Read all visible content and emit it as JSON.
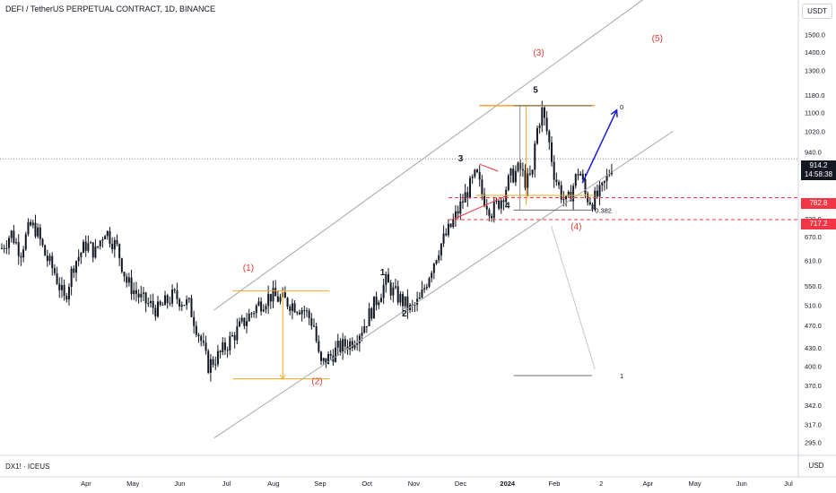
{
  "header": {
    "symbol_title": "DEFI / TetherUS PERPETUAL CONTRACT, 1D, BINANCE",
    "currency_button": "USDT"
  },
  "footer": {
    "sub_symbol": "DX1! · ICEUS",
    "currency_button": "USD"
  },
  "price_badges": {
    "last_price": "914.2",
    "countdown": "14:58:38",
    "level_upper": "782.8",
    "level_lower": "717.2"
  },
  "colors": {
    "candle": "#131722",
    "channel": "#a6a6a6",
    "orange": "#f5a623",
    "red_label": "#e53935",
    "dashed_red": "#f23645",
    "projection": "#1c1cd6",
    "fib": "#6b6b6b"
  },
  "chart_data": {
    "type": "candlestick",
    "x_axis_labels": [
      "Apr",
      "May",
      "Jun",
      "Jul",
      "Aug",
      "Sep",
      "Oct",
      "Nov",
      "Dec",
      "2024",
      "Feb",
      "2",
      "Apr",
      "May",
      "Jun",
      "Jul"
    ],
    "y_axis_labels": [
      "1500.0",
      "1400.0",
      "1300.0",
      "1180.0",
      "1100.0",
      "1020.0",
      "940.0",
      "865.0",
      "720.0",
      "670.0",
      "610.0",
      "550.0",
      "510.0",
      "470.0",
      "430.0",
      "400.0",
      "370.0",
      "342.0",
      "317.0",
      "295.0"
    ],
    "scale": "log",
    "y_range": [
      280,
      1650
    ],
    "price_path": [
      [
        0,
        640
      ],
      [
        3,
        680
      ],
      [
        6,
        630
      ],
      [
        9,
        700
      ],
      [
        11,
        690
      ],
      [
        14,
        620
      ],
      [
        17,
        580
      ],
      [
        20,
        520
      ],
      [
        23,
        600
      ],
      [
        27,
        650
      ],
      [
        30,
        630
      ],
      [
        33,
        690
      ],
      [
        37,
        640
      ],
      [
        40,
        560
      ],
      [
        45,
        520
      ],
      [
        50,
        500
      ],
      [
        55,
        530
      ],
      [
        60,
        510
      ],
      [
        64,
        440
      ],
      [
        66,
        400
      ],
      [
        68,
        410
      ],
      [
        70,
        420
      ],
      [
        74,
        450
      ],
      [
        78,
        480
      ],
      [
        82,
        510
      ],
      [
        86,
        530
      ],
      [
        90,
        520
      ],
      [
        94,
        510
      ],
      [
        97,
        500
      ],
      [
        100,
        470
      ],
      [
        102,
        400
      ],
      [
        104,
        410
      ],
      [
        108,
        430
      ],
      [
        112,
        440
      ],
      [
        116,
        470
      ],
      [
        120,
        520
      ],
      [
        123,
        560
      ],
      [
        125,
        540
      ],
      [
        128,
        520
      ],
      [
        131,
        500
      ],
      [
        134,
        520
      ],
      [
        137,
        580
      ],
      [
        140,
        640
      ],
      [
        144,
        700
      ],
      [
        148,
        780
      ],
      [
        152,
        860
      ],
      [
        154,
        790
      ],
      [
        157,
        740
      ],
      [
        160,
        780
      ],
      [
        163,
        850
      ],
      [
        166,
        880
      ],
      [
        168,
        830
      ],
      [
        170,
        860
      ],
      [
        171,
        1000
      ],
      [
        173,
        1110
      ],
      [
        175,
        1000
      ],
      [
        177,
        860
      ],
      [
        179,
        800
      ],
      [
        181,
        760
      ],
      [
        183,
        820
      ],
      [
        185,
        880
      ],
      [
        187,
        790
      ],
      [
        189,
        770
      ],
      [
        192,
        800
      ],
      [
        194,
        850
      ],
      [
        196,
        914
      ]
    ],
    "annotations": {
      "labels": [
        {
          "text": "(1)",
          "x": 79,
          "y": 585,
          "color": "red"
        },
        {
          "text": "(2)",
          "x": 101,
          "y": 372,
          "color": "red"
        },
        {
          "text": "(3)",
          "x": 172,
          "y": 1380,
          "color": "red"
        },
        {
          "text": "(4)",
          "x": 184,
          "y": 690,
          "color": "red"
        },
        {
          "text": "(5)",
          "x": 210,
          "y": 1460,
          "color": "red"
        },
        {
          "text": "1",
          "x": 122,
          "y": 575,
          "color": "black"
        },
        {
          "text": "2",
          "x": 129,
          "y": 487,
          "color": "black"
        },
        {
          "text": "3",
          "x": 147,
          "y": 905,
          "color": "black"
        },
        {
          "text": "4",
          "x": 162,
          "y": 750,
          "color": "black"
        },
        {
          "text": "5",
          "x": 171,
          "y": 1190,
          "color": "black"
        }
      ],
      "fib_labels": [
        {
          "text": "0",
          "x": 198,
          "y": 1125
        },
        {
          "text": "0.382",
          "x": 190,
          "y": 745
        },
        {
          "text": "1",
          "x": 198,
          "y": 385
        }
      ]
    }
  }
}
